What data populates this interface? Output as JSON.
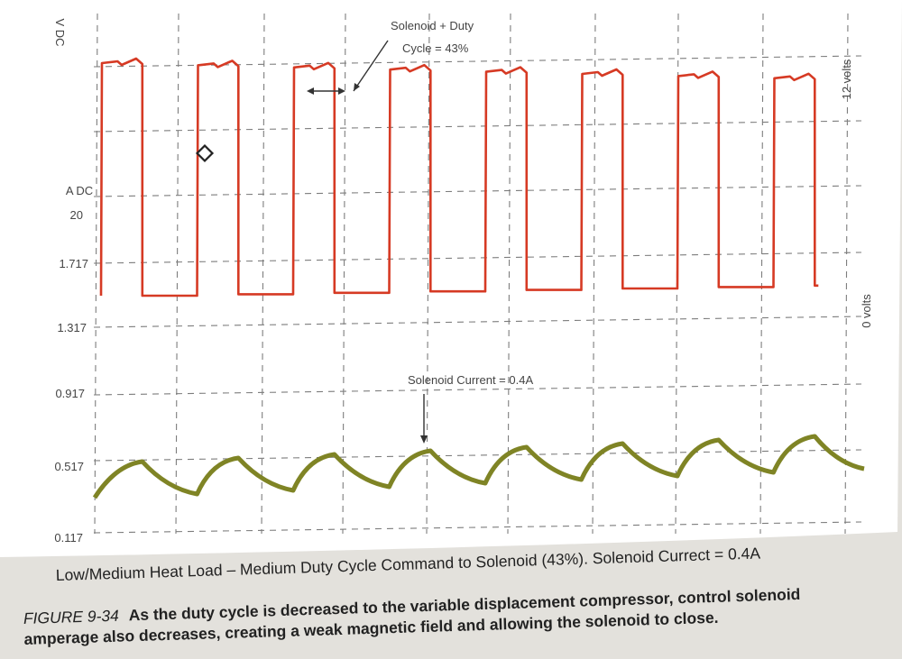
{
  "chart_data": {
    "type": "line",
    "title": "Low/Medium Heat Load – Medium Duty Cycle Command to Solenoid (43%). Solenoid Currect = 0.4A",
    "y_unit_top": "V DC",
    "y_unit_amps": "A DC",
    "y_amps_top_label": "20",
    "y_ticks": [
      "1.717",
      "1.317",
      "0.917",
      "0.517",
      "0.117"
    ],
    "right_labels": [
      "12 volts",
      "0 volts"
    ],
    "annotations": {
      "duty": "Solenoid + Duty Cycle = 43%",
      "current": "Solenoid Current = 0.4A"
    },
    "grid": true,
    "series": [
      {
        "type": "square-wave",
        "color": "#d63a24",
        "duty_cycle_percent": 43,
        "high": "12 volts",
        "low": "0 volts",
        "pulses": 8
      },
      {
        "type": "sawtooth-current",
        "color": "#7f8425",
        "current_amps": 0.4,
        "peaks": 8
      }
    ]
  },
  "caption": {
    "figure_label": "FIGURE 9-34",
    "text_line1": "As the duty cycle is decreased to the variable displacement compressor, control solenoid",
    "text_line2": "amperage also decreases, creating a weak magnetic field and allowing the solenoid to close."
  }
}
